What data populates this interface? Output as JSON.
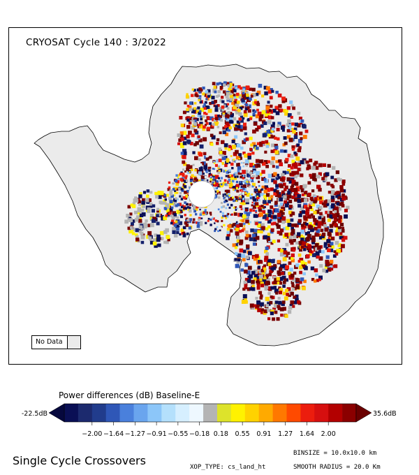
{
  "map": {
    "title": "CRYOSAT Cycle 140 : 3/2022",
    "no_data_label": "No Data",
    "no_data_color": "#ebebeb",
    "land_color": "#ebebeb"
  },
  "colorbar": {
    "title": "Power differences (dB) Baseline-E",
    "min_label": "-22.5dB",
    "max_label": "35.6dB",
    "tick_labels": [
      "-2.00",
      "-1.64",
      "-1.27",
      "-0.91",
      "-0.55",
      "-0.18",
      "0.18",
      "0.55",
      "0.91",
      "1.27",
      "1.64",
      "2.00"
    ],
    "colors": [
      "#0a0f55",
      "#1c2a6e",
      "#213c8c",
      "#2f57b7",
      "#4a80dc",
      "#6aa5ee",
      "#8cc6f9",
      "#b4e0fc",
      "#d6efff",
      "#eef8ff",
      "#b4b4b4",
      "#dde32b",
      "#fff200",
      "#ffd200",
      "#ffaa00",
      "#ff7800",
      "#ff4a00",
      "#ec1d0e",
      "#d60f0f",
      "#b30000",
      "#8b0000"
    ],
    "low_end_color": "#06083d",
    "high_end_color": "#6a0000"
  },
  "footer": {
    "title": "Single Cycle Crossovers",
    "xop_type": "XOP_TYPE: cs_land_ht",
    "binsize": "BINSIZE = 10.0x10.0 km",
    "smooth_radius": "SMOOTH RADIUS =  20.0 Km"
  }
}
